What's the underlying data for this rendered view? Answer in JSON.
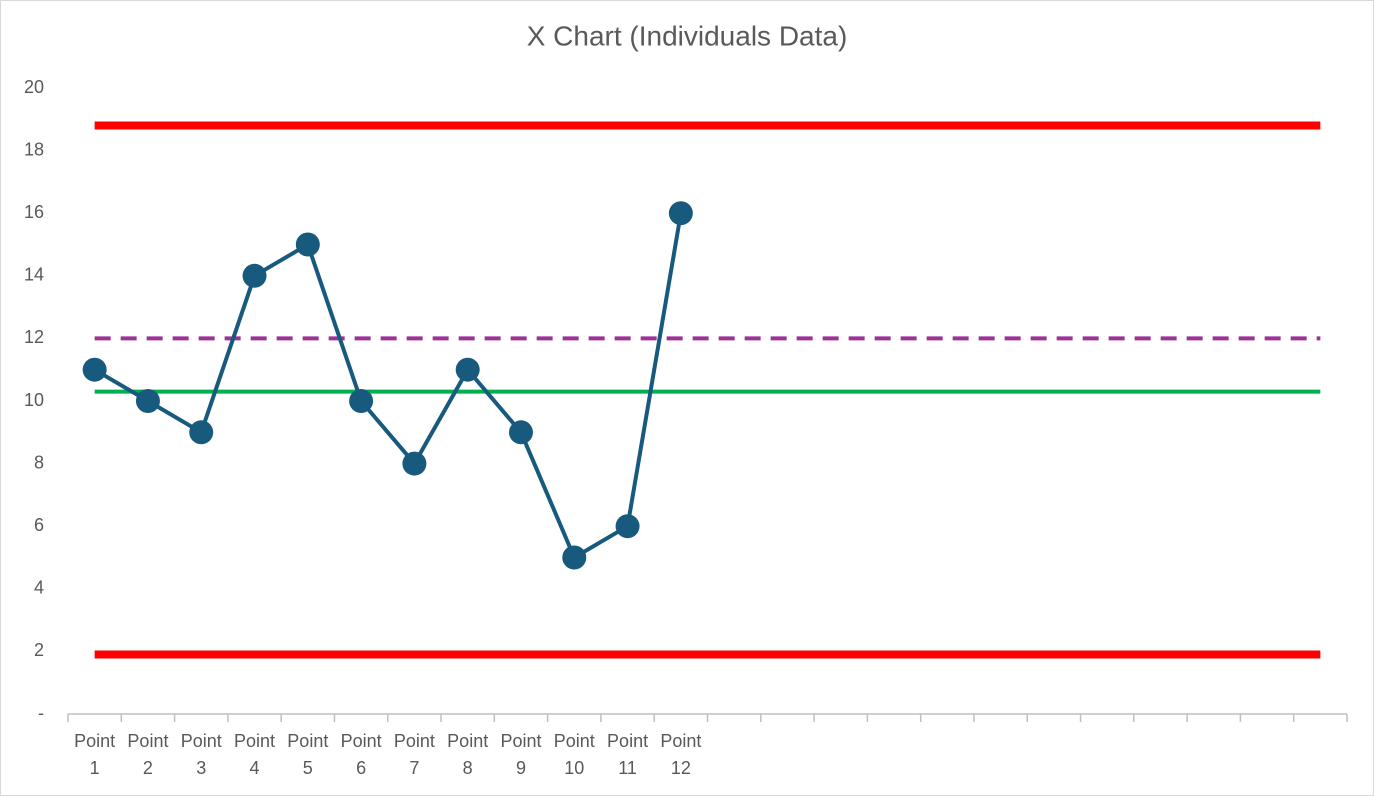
{
  "chart_data": {
    "type": "line",
    "title": "X Chart (Individuals Data)",
    "categories": [
      "Point 1",
      "Point 2",
      "Point 3",
      "Point 4",
      "Point 5",
      "Point 6",
      "Point 7",
      "Point 8",
      "Point 9",
      "Point 10",
      "Point 11",
      "Point 12",
      null,
      null,
      null,
      null,
      null,
      null,
      null,
      null,
      null,
      null,
      null,
      null
    ],
    "series": [
      {
        "color": "#ff0000",
        "line_width": 8,
        "values": [
          18.8,
          18.8,
          18.8,
          18.8,
          18.8,
          18.8,
          18.8,
          18.8,
          18.8,
          18.8,
          18.8,
          18.8,
          18.8,
          18.8,
          18.8,
          18.8,
          18.8,
          18.8,
          18.8,
          18.8,
          18.8,
          18.8,
          18.8,
          18.8
        ]
      },
      {
        "color": "#ff0000",
        "line_width": 8,
        "values": [
          1.9,
          1.9,
          1.9,
          1.9,
          1.9,
          1.9,
          1.9,
          1.9,
          1.9,
          1.9,
          1.9,
          1.9,
          1.9,
          1.9,
          1.9,
          1.9,
          1.9,
          1.9,
          1.9,
          1.9,
          1.9,
          1.9,
          1.9,
          1.9
        ]
      },
      {
        "color": "#9e3296",
        "line_width": 4,
        "dashed": true,
        "values": [
          12,
          12,
          12,
          12,
          12,
          12,
          12,
          12,
          12,
          12,
          12,
          12,
          12,
          12,
          12,
          12,
          12,
          12,
          12,
          12,
          12,
          12,
          12,
          12
        ]
      },
      {
        "color": "#00b050",
        "line_width": 4,
        "values": [
          10.3,
          10.3,
          10.3,
          10.3,
          10.3,
          10.3,
          10.3,
          10.3,
          10.3,
          10.3,
          10.3,
          10.3,
          10.3,
          10.3,
          10.3,
          10.3,
          10.3,
          10.3,
          10.3,
          10.3,
          10.3,
          10.3,
          10.3,
          10.3
        ]
      },
      {
        "color": "#175a7e",
        "line_width": 4,
        "markers": true,
        "values": [
          11,
          10,
          9,
          14,
          15,
          10,
          8,
          11,
          9,
          5,
          6,
          16,
          null,
          null,
          null,
          null,
          null,
          null,
          null,
          null,
          null,
          null,
          null,
          null
        ]
      }
    ],
    "ylim": [
      0,
      20
    ],
    "yticks": [
      {
        "value": 0,
        "label": "-"
      },
      2,
      4,
      6,
      8,
      10,
      12,
      14,
      16,
      18,
      20
    ],
    "grid": false
  }
}
